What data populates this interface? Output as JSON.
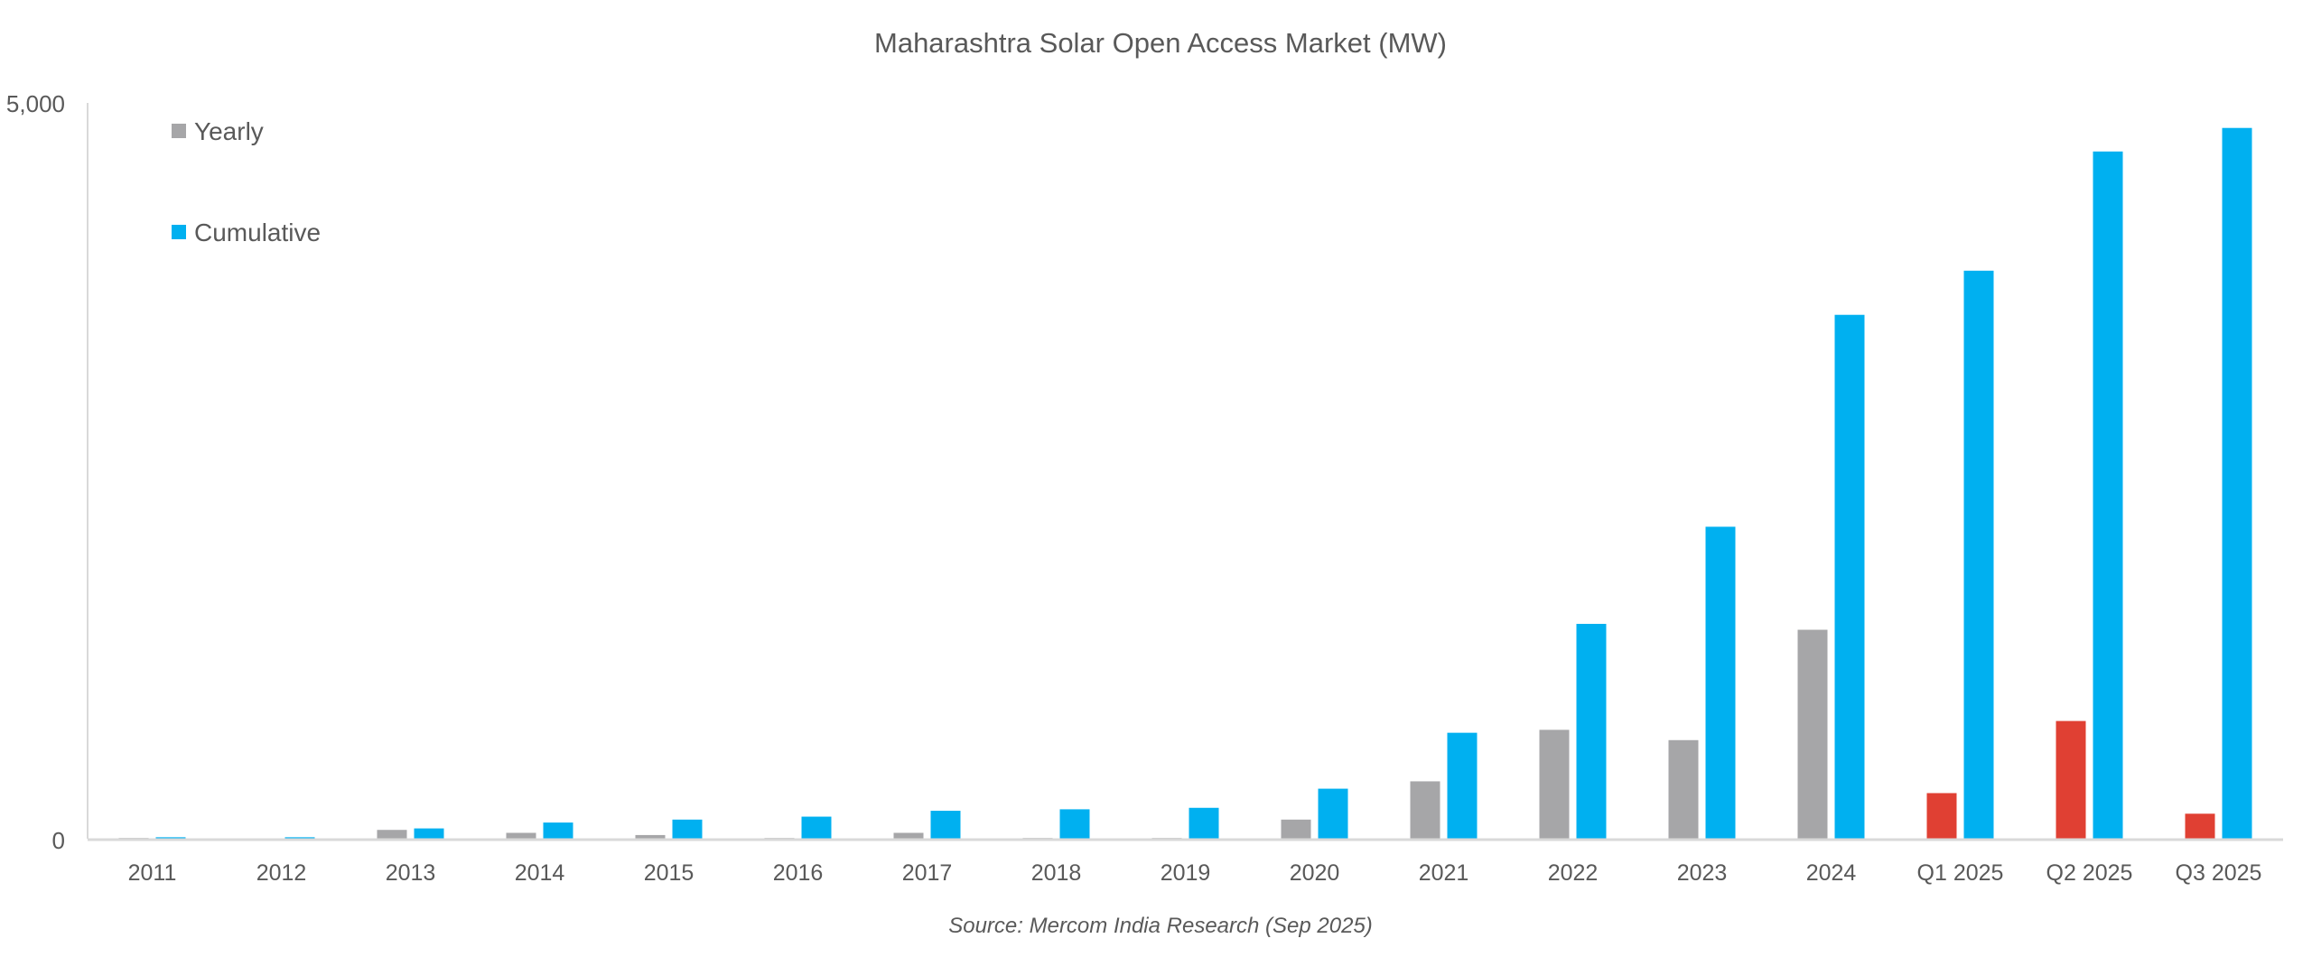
{
  "chart_data": {
    "type": "bar",
    "title": "Maharashtra Solar Open Access Market (MW)",
    "source": "Source: Mercom India Research (Sep 2025)",
    "xlabel": "",
    "ylabel": "",
    "ylim": [
      0,
      5000
    ],
    "y_tick_labels": [
      "0",
      "5,000"
    ],
    "y_ticks": [
      0,
      5000
    ],
    "grid": false,
    "legend_position": "top-left",
    "categories": [
      "2011",
      "2012",
      "2013",
      "2014",
      "2015",
      "2016",
      "2017",
      "2018",
      "2019",
      "2020",
      "2021",
      "2022",
      "2023",
      "2024",
      "Q1 2025",
      "Q2 2025",
      "Q3 2025"
    ],
    "series": [
      {
        "name": "Yearly",
        "color": "#A6A6A8",
        "quarter_color": "#E04033",
        "values": [
          5,
          0,
          60,
          40,
          25,
          5,
          40,
          5,
          5,
          130,
          390,
          740,
          670,
          1420,
          310,
          800,
          170
        ]
      },
      {
        "name": "Cumulative",
        "color": "#00B0F0",
        "values": [
          10,
          10,
          70,
          110,
          130,
          150,
          190,
          200,
          210,
          340,
          720,
          1460,
          2120,
          3560,
          3860,
          4670,
          4830
        ]
      }
    ]
  }
}
